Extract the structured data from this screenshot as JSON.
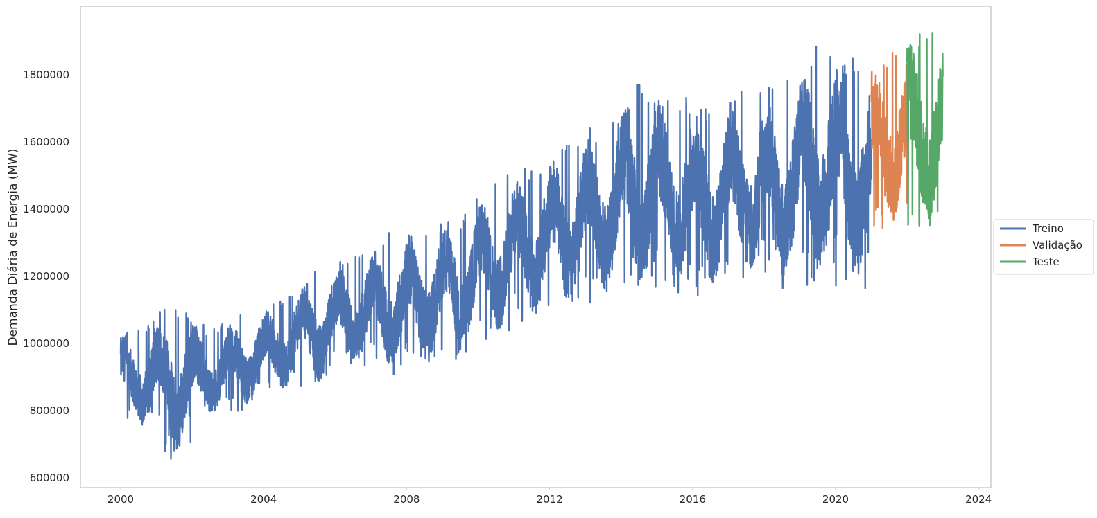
{
  "chart_data": {
    "type": "line",
    "title": "",
    "xlabel": "",
    "ylabel": "Demanda Diária de Energia (MW)",
    "xlim": [
      "1999-01-01",
      "2024-01-01"
    ],
    "ylim": [
      580000,
      1990000
    ],
    "grid": false,
    "legend_position": "center-right outside",
    "x_ticks": [
      "2000",
      "2004",
      "2008",
      "2012",
      "2016",
      "2020",
      "2024"
    ],
    "y_ticks": [
      "600000",
      "800000",
      "1000000",
      "1200000",
      "1400000",
      "1600000",
      "1800000"
    ],
    "series": [
      {
        "name": "Treino",
        "color": "#4c72b0",
        "start": "2000-01-01",
        "end": "2020-12-31",
        "yearly_peak": [
          [
            "2000",
            1040000
          ],
          [
            "2001",
            1130000
          ],
          [
            "2002",
            1040000
          ],
          [
            "2003",
            1100000
          ],
          [
            "2004",
            1130000
          ],
          [
            "2005",
            1230000
          ],
          [
            "2006",
            1260000
          ],
          [
            "2007",
            1340000
          ],
          [
            "2008",
            1360000
          ],
          [
            "2009",
            1380000
          ],
          [
            "2010",
            1490000
          ],
          [
            "2011",
            1530000
          ],
          [
            "2012",
            1610000
          ],
          [
            "2013",
            1660000
          ],
          [
            "2014",
            1780000
          ],
          [
            "2015",
            1760000
          ],
          [
            "2016",
            1700000
          ],
          [
            "2017",
            1760000
          ],
          [
            "2018",
            1770000
          ],
          [
            "2019",
            1900000
          ],
          [
            "2020",
            1850000
          ]
        ],
        "yearly_trough": [
          [
            "2000",
            760000
          ],
          [
            "2001",
            640000
          ],
          [
            "2002",
            780000
          ],
          [
            "2003",
            800000
          ],
          [
            "2004",
            850000
          ],
          [
            "2005",
            860000
          ],
          [
            "2006",
            930000
          ],
          [
            "2007",
            900000
          ],
          [
            "2008",
            920000
          ],
          [
            "2009",
            950000
          ],
          [
            "2010",
            1020000
          ],
          [
            "2011",
            1050000
          ],
          [
            "2012",
            1080000
          ],
          [
            "2013",
            1130000
          ],
          [
            "2014",
            1150000
          ],
          [
            "2015",
            1120000
          ],
          [
            "2016",
            1150000
          ],
          [
            "2017",
            1180000
          ],
          [
            "2018",
            1160000
          ],
          [
            "2019",
            1170000
          ],
          [
            "2020",
            1160000
          ]
        ]
      },
      {
        "name": "Validação",
        "color": "#dd8452",
        "start": "2021-01-01",
        "end": "2021-12-31",
        "peak": 1870000,
        "trough": 1340000
      },
      {
        "name": "Teste",
        "color": "#55a868",
        "start": "2022-01-01",
        "end": "2022-12-31",
        "peak": 1930000,
        "trough": 1330000
      }
    ]
  }
}
